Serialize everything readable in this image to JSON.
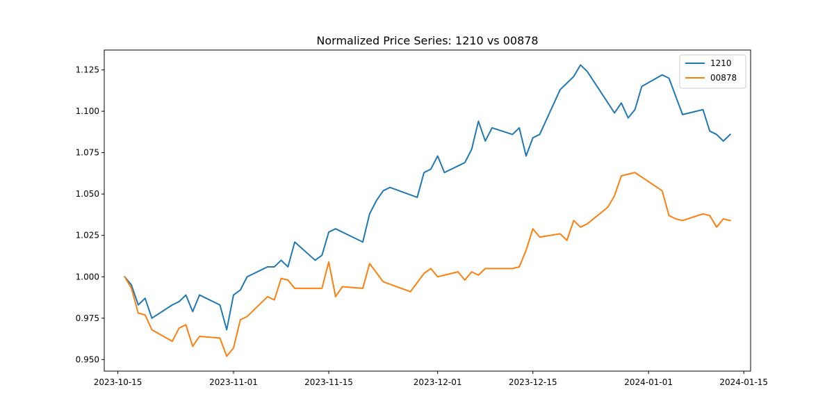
{
  "chart_data": {
    "type": "line",
    "title": "Normalized Price Series: 1210 vs 00878",
    "xlabel": "",
    "ylabel": "",
    "xlim": [
      "2023-10-13",
      "2024-01-16"
    ],
    "ylim": [
      0.943,
      1.137
    ],
    "x_ticks": [
      "2023-10-15",
      "2023-11-01",
      "2023-11-15",
      "2023-12-01",
      "2023-12-15",
      "2024-01-01",
      "2024-01-15"
    ],
    "y_ticks": [
      0.95,
      0.975,
      1.0,
      1.025,
      1.05,
      1.075,
      1.1,
      1.125
    ],
    "y_tick_labels": [
      "0.950",
      "0.975",
      "1.000",
      "1.025",
      "1.050",
      "1.075",
      "1.100",
      "1.125"
    ],
    "grid": false,
    "legend_position": "top-right",
    "series": [
      {
        "name": "1210",
        "color": "#1f77b4",
        "points": [
          [
            "2023-10-16",
            1.0
          ],
          [
            "2023-10-17",
            0.995
          ],
          [
            "2023-10-18",
            0.983
          ],
          [
            "2023-10-19",
            0.987
          ],
          [
            "2023-10-20",
            0.975
          ],
          [
            "2023-10-23",
            0.983
          ],
          [
            "2023-10-24",
            0.985
          ],
          [
            "2023-10-25",
            0.989
          ],
          [
            "2023-10-26",
            0.979
          ],
          [
            "2023-10-27",
            0.989
          ],
          [
            "2023-10-30",
            0.983
          ],
          [
            "2023-10-31",
            0.968
          ],
          [
            "2023-11-01",
            0.989
          ],
          [
            "2023-11-02",
            0.992
          ],
          [
            "2023-11-03",
            1.0
          ],
          [
            "2023-11-06",
            1.006
          ],
          [
            "2023-11-07",
            1.006
          ],
          [
            "2023-11-08",
            1.01
          ],
          [
            "2023-11-09",
            1.006
          ],
          [
            "2023-11-10",
            1.021
          ],
          [
            "2023-11-13",
            1.01
          ],
          [
            "2023-11-14",
            1.013
          ],
          [
            "2023-11-15",
            1.027
          ],
          [
            "2023-11-16",
            1.029
          ],
          [
            "2023-11-20",
            1.021
          ],
          [
            "2023-11-21",
            1.038
          ],
          [
            "2023-11-22",
            1.046
          ],
          [
            "2023-11-23",
            1.052
          ],
          [
            "2023-11-24",
            1.054
          ],
          [
            "2023-11-28",
            1.048
          ],
          [
            "2023-11-29",
            1.063
          ],
          [
            "2023-11-30",
            1.065
          ],
          [
            "2023-12-01",
            1.073
          ],
          [
            "2023-12-02",
            1.063
          ],
          [
            "2023-12-05",
            1.069
          ],
          [
            "2023-12-06",
            1.077
          ],
          [
            "2023-12-07",
            1.094
          ],
          [
            "2023-12-08",
            1.082
          ],
          [
            "2023-12-09",
            1.09
          ],
          [
            "2023-12-12",
            1.086
          ],
          [
            "2023-12-13",
            1.09
          ],
          [
            "2023-12-14",
            1.073
          ],
          [
            "2023-12-15",
            1.084
          ],
          [
            "2023-12-16",
            1.086
          ],
          [
            "2023-12-19",
            1.113
          ],
          [
            "2023-12-21",
            1.121
          ],
          [
            "2023-12-22",
            1.128
          ],
          [
            "2023-12-23",
            1.124
          ],
          [
            "2023-12-27",
            1.099
          ],
          [
            "2023-12-28",
            1.105
          ],
          [
            "2023-12-29",
            1.096
          ],
          [
            "2023-12-30",
            1.101
          ],
          [
            "2023-12-31",
            1.115
          ],
          [
            "2024-01-03",
            1.122
          ],
          [
            "2024-01-04",
            1.12
          ],
          [
            "2024-01-06",
            1.098
          ],
          [
            "2024-01-09",
            1.101
          ],
          [
            "2024-01-10",
            1.088
          ],
          [
            "2024-01-11",
            1.086
          ],
          [
            "2024-01-12",
            1.082
          ],
          [
            "2024-01-13",
            1.086
          ]
        ]
      },
      {
        "name": "00878",
        "color": "#ff7f0e",
        "points": [
          [
            "2023-10-16",
            1.0
          ],
          [
            "2023-10-17",
            0.993
          ],
          [
            "2023-10-18",
            0.978
          ],
          [
            "2023-10-19",
            0.977
          ],
          [
            "2023-10-20",
            0.968
          ],
          [
            "2023-10-23",
            0.961
          ],
          [
            "2023-10-24",
            0.969
          ],
          [
            "2023-10-25",
            0.971
          ],
          [
            "2023-10-26",
            0.958
          ],
          [
            "2023-10-27",
            0.964
          ],
          [
            "2023-10-30",
            0.963
          ],
          [
            "2023-10-31",
            0.952
          ],
          [
            "2023-11-01",
            0.957
          ],
          [
            "2023-11-02",
            0.974
          ],
          [
            "2023-11-03",
            0.976
          ],
          [
            "2023-11-06",
            0.988
          ],
          [
            "2023-11-07",
            0.986
          ],
          [
            "2023-11-08",
            0.999
          ],
          [
            "2023-11-09",
            0.998
          ],
          [
            "2023-11-10",
            0.993
          ],
          [
            "2023-11-14",
            0.993
          ],
          [
            "2023-11-15",
            1.009
          ],
          [
            "2023-11-16",
            0.988
          ],
          [
            "2023-11-17",
            0.994
          ],
          [
            "2023-11-20",
            0.993
          ],
          [
            "2023-11-21",
            1.008
          ],
          [
            "2023-11-23",
            0.997
          ],
          [
            "2023-11-27",
            0.991
          ],
          [
            "2023-11-29",
            1.002
          ],
          [
            "2023-11-30",
            1.005
          ],
          [
            "2023-12-01",
            1.0
          ],
          [
            "2023-12-04",
            1.003
          ],
          [
            "2023-12-05",
            0.998
          ],
          [
            "2023-12-06",
            1.003
          ],
          [
            "2023-12-07",
            1.001
          ],
          [
            "2023-12-08",
            1.005
          ],
          [
            "2023-12-12",
            1.005
          ],
          [
            "2023-12-13",
            1.006
          ],
          [
            "2023-12-14",
            1.016
          ],
          [
            "2023-12-15",
            1.029
          ],
          [
            "2023-12-16",
            1.024
          ],
          [
            "2023-12-19",
            1.026
          ],
          [
            "2023-12-20",
            1.022
          ],
          [
            "2023-12-21",
            1.034
          ],
          [
            "2023-12-22",
            1.03
          ],
          [
            "2023-12-23",
            1.032
          ],
          [
            "2023-12-26",
            1.042
          ],
          [
            "2023-12-27",
            1.049
          ],
          [
            "2023-12-28",
            1.061
          ],
          [
            "2023-12-29",
            1.062
          ],
          [
            "2023-12-30",
            1.063
          ],
          [
            "2024-01-03",
            1.052
          ],
          [
            "2024-01-04",
            1.037
          ],
          [
            "2024-01-05",
            1.035
          ],
          [
            "2024-01-06",
            1.034
          ],
          [
            "2024-01-09",
            1.038
          ],
          [
            "2024-01-10",
            1.037
          ],
          [
            "2024-01-11",
            1.03
          ],
          [
            "2024-01-12",
            1.035
          ],
          [
            "2024-01-13",
            1.034
          ]
        ]
      }
    ]
  }
}
